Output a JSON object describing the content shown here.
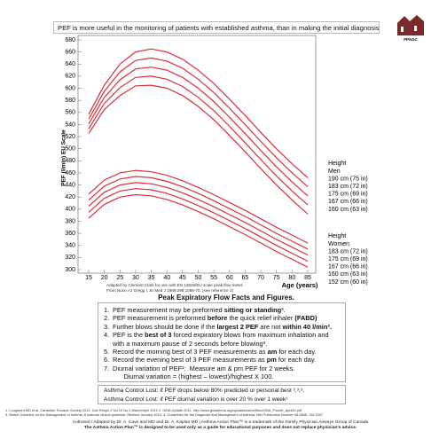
{
  "header": {
    "banner": "PEF is more useful in the monitoring of patients with established asthma, than in making the initial diagnosis³.",
    "logo": "FPAGC"
  },
  "chart_data": {
    "type": "line",
    "ylabel": "PEF (l/min) EU Scale",
    "xlabel": "Age (years)",
    "x": [
      15,
      20,
      25,
      30,
      35,
      40,
      45,
      50,
      55,
      60,
      65,
      70,
      75,
      80,
      85
    ],
    "xlim": [
      15,
      85
    ],
    "xticks": [
      15,
      20,
      25,
      30,
      35,
      40,
      45,
      50,
      55,
      60,
      65,
      70,
      75,
      80,
      85
    ],
    "ylim": [
      300,
      680
    ],
    "yticks": [
      300,
      320,
      340,
      360,
      380,
      400,
      420,
      440,
      460,
      480,
      500,
      520,
      540,
      560,
      580,
      600,
      620,
      640,
      660,
      680
    ],
    "legend_titles": [
      {
        "title": "Height",
        "subtitle": "Men"
      },
      {
        "title": "Height",
        "subtitle": "Women"
      }
    ],
    "series": [
      {
        "name": "190 cm (75 in)",
        "color": "#d9303a",
        "values": [
          557,
          605,
          640,
          660,
          665,
          660,
          648,
          630,
          608,
          582,
          555,
          527,
          500,
          475,
          452
        ]
      },
      {
        "name": "183 cm (72 in)",
        "color": "#d9303a",
        "values": [
          549,
          595,
          627,
          646,
          650,
          645,
          633,
          615,
          593,
          567,
          540,
          512,
          485,
          460,
          437
        ]
      },
      {
        "name": "175 cm (69 in)",
        "color": "#d9303a",
        "values": [
          541,
          585,
          614,
          632,
          635,
          630,
          618,
          600,
          578,
          552,
          525,
          497,
          470,
          445,
          422
        ]
      },
      {
        "name": "167 cm (66 in)",
        "color": "#d9303a",
        "values": [
          533,
          575,
          601,
          618,
          620,
          615,
          603,
          585,
          563,
          537,
          510,
          482,
          455,
          430,
          407
        ]
      },
      {
        "name": "160 cm (63 in)",
        "color": "#d9303a",
        "values": [
          525,
          565,
          588,
          604,
          605,
          600,
          588,
          570,
          548,
          522,
          495,
          467,
          440,
          415,
          392
        ]
      },
      {
        "name": "183 cm (72 in)",
        "color": "#d9303a",
        "values": [
          425,
          448,
          460,
          464,
          462,
          456,
          447,
          436,
          424,
          411,
          398,
          384,
          370,
          357,
          344
        ]
      },
      {
        "name": "175 cm (69 in)",
        "color": "#d9303a",
        "values": [
          415,
          438,
          450,
          454,
          452,
          446,
          437,
          426,
          414,
          401,
          388,
          374,
          360,
          347,
          334
        ]
      },
      {
        "name": "167 cm (66 in)",
        "color": "#d9303a",
        "values": [
          405,
          428,
          440,
          444,
          442,
          436,
          427,
          416,
          404,
          391,
          378,
          364,
          350,
          337,
          324
        ]
      },
      {
        "name": "160 cm (63 in)",
        "color": "#d9303a",
        "values": [
          395,
          418,
          430,
          434,
          432,
          426,
          417,
          406,
          394,
          381,
          368,
          354,
          340,
          327,
          314
        ]
      },
      {
        "name": "152 cm (60 in)",
        "color": "#d9303a",
        "values": [
          385,
          408,
          420,
          424,
          422,
          416,
          407,
          396,
          384,
          371,
          358,
          344,
          330,
          317,
          304
        ]
      }
    ]
  },
  "source": [
    "Adapted by Clement Clark for use with EN 13826/EU scale peak flow meter.",
    "From Nunn AJ Gregg I, Br Med J 1989:298;1068-70. (see reference 3)"
  ],
  "facts": {
    "title": "Peak Expiratory Flow Facts and Figures.",
    "items": [
      {
        "num": "1.",
        "parts": [
          "PEF measurement may be preformed ",
          "sitting or standing",
          "³."
        ]
      },
      {
        "num": "2.",
        "parts": [
          "PEF measurement is preformed ",
          "before",
          " the quick relief inhaler ",
          "(FABD)"
        ]
      },
      {
        "num": "3.",
        "parts": [
          "Further blows should be done if the ",
          "largest 2 PEF",
          " are not ",
          "within 40 l/min³."
        ]
      },
      {
        "num": "4.",
        "parts": [
          "PEF is the ",
          "best of 3",
          " forced expiratory blows from maximum inhalation and with a maximum pause of 2 seconds before blowing³."
        ]
      },
      {
        "num": "5.",
        "parts": [
          "Record the morning best of 3 PEF measurements as ",
          "am",
          " for each day."
        ]
      },
      {
        "num": "6.",
        "parts": [
          "Record the evening best of 3 PEF measurements as ",
          "pm",
          " for each day."
        ]
      },
      {
        "num": "7.",
        "parts": [
          "Diurnal variation of PEF¹:  Measure am & pm PEF for 2 weeks.\n      Diurnal variation = (highest – lowest)/highest X 100."
        ]
      }
    ]
  },
  "control": [
    "Asthma Control Lost: if PEF drops below 80%  predicted or personal best ²,³,⁵.",
    "Asthma Control Lost: if PEF diurnal variation is over 20 % over 1 week¹"
  ],
  "references": [
    "1. Lougheed MD et al. Canadian Thoracic Society 2012. Can Respir J Vol 19 No 2 March/April 2012    2. GINA Update 2011. http://www.ginasthma.org/uploads/users/files/GINA_Pocket_April20.pdf",
    "3. British Guideline on the Management of Asthma. A national clinical guideline. Revised January 2012.    4. Guidelines for the Diagnosis and Management of Asthma. NIH Publication Number 08-5846. Oct 2007"
  ],
  "footer": [
    "Authored / Adapted by Dr. A. Cave and MD and Dr. A. Kaplan MD  |  Asthma Action Plan™ is a trademark of the Family Physician Airways Group of Canada",
    "The Asthma Action Plan™ is designed to be used only as a guide for educational purposes and does not replace physician's advice."
  ]
}
